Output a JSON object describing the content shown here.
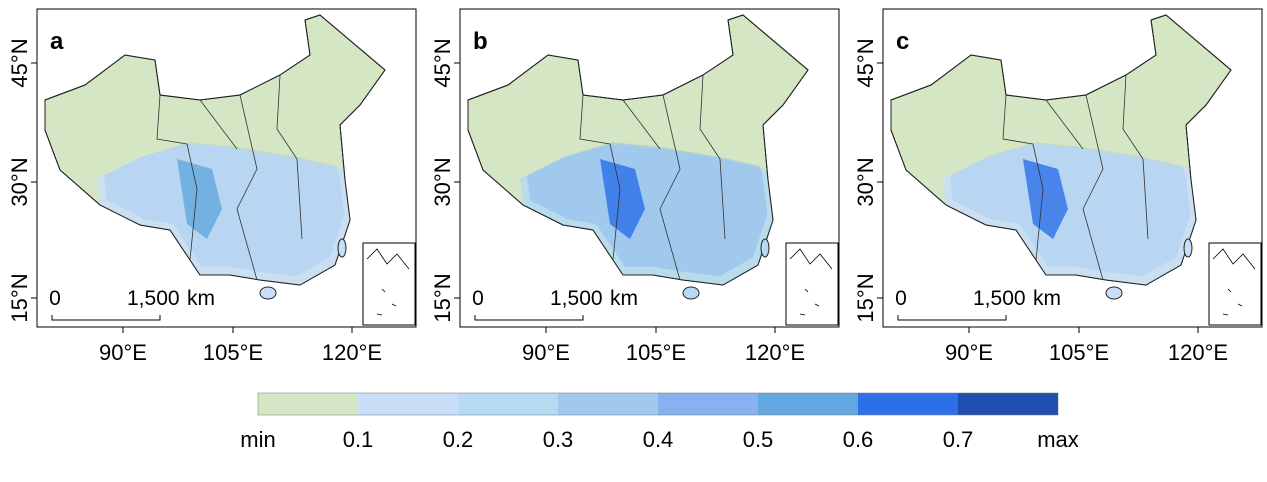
{
  "panels": [
    {
      "label": "a"
    },
    {
      "label": "b"
    },
    {
      "label": "c"
    }
  ],
  "lat_labels": [
    "45°N",
    "30°N",
    "15°N"
  ],
  "lon_labels": [
    "90°E",
    "105°E",
    "120°E"
  ],
  "scale_bar": {
    "start": "0",
    "end": "1,500",
    "unit": "km"
  },
  "legend": {
    "colors": [
      "#d4e6c3",
      "#c9dff7",
      "#b6daf2",
      "#a2c8f0",
      "#86b2f0",
      "#62a7df",
      "#2c6fe8",
      "#1f4fae"
    ],
    "labels": [
      "min",
      "0.1",
      "0.2",
      "0.3",
      "0.4",
      "0.5",
      "0.6",
      "0.7",
      "max"
    ]
  }
}
